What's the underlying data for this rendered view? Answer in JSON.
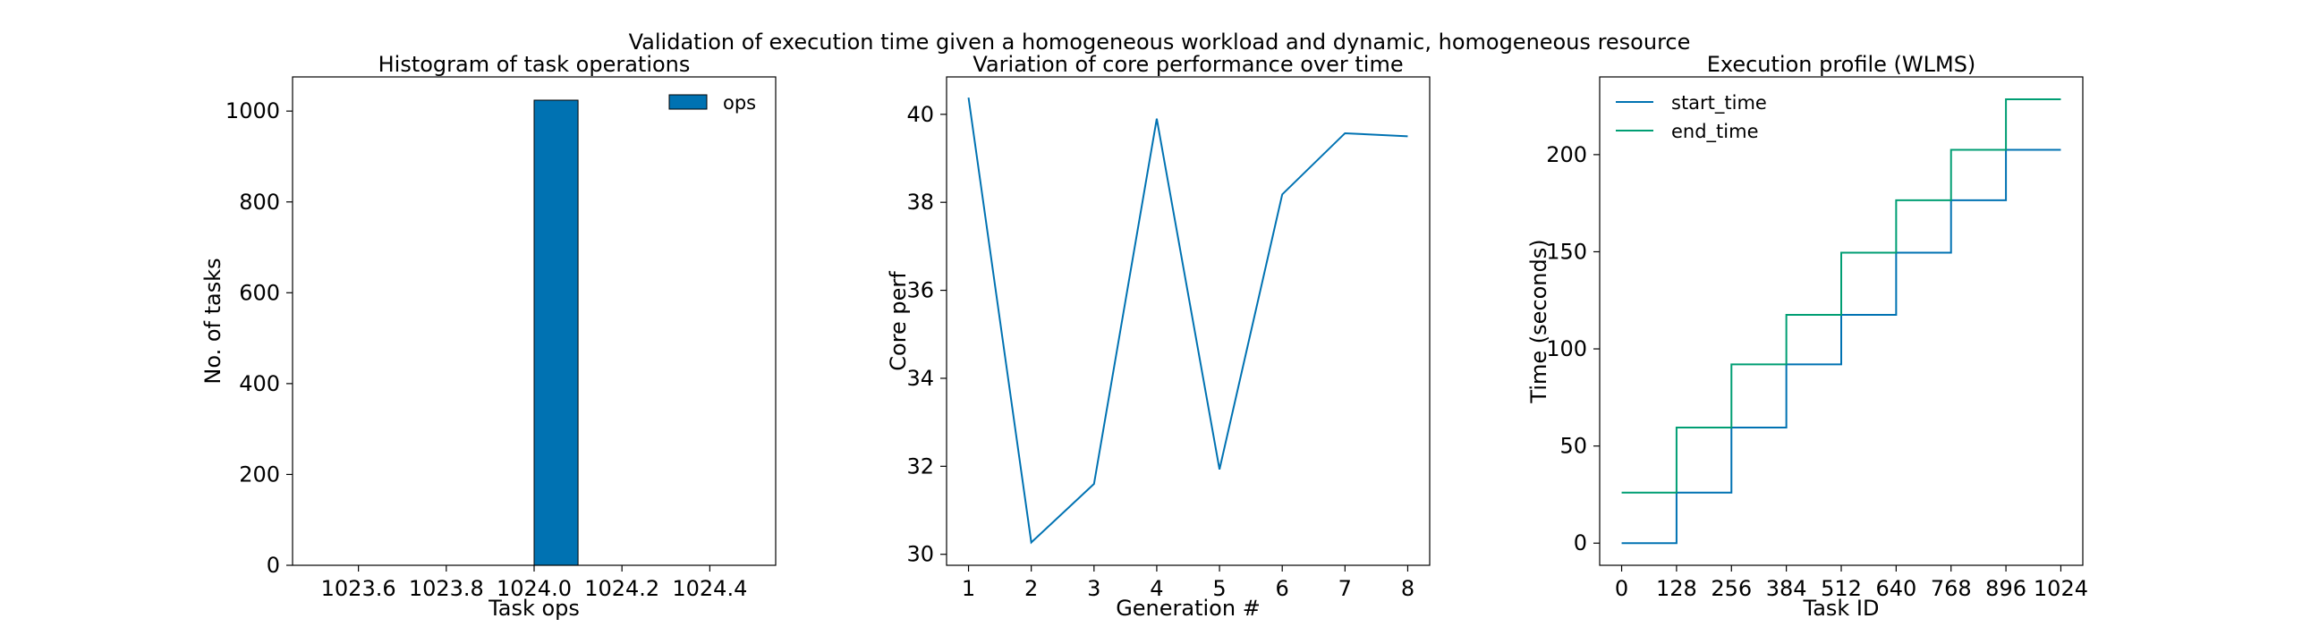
{
  "figure": {
    "suptitle": "Validation of execution time given a homogeneous workload and dynamic, homogeneous resource"
  },
  "chart_data": [
    {
      "type": "bar",
      "title": "Histogram of task operations",
      "xlabel": "Task ops",
      "ylabel": "No. of tasks",
      "xlim": [
        1023.45,
        1024.55
      ],
      "ylim": [
        0,
        1075.2
      ],
      "xticks": [
        "1023.6",
        "1023.8",
        "1024.0",
        "1024.2",
        "1024.4"
      ],
      "yticks": [
        "0",
        "200",
        "400",
        "600",
        "800",
        "1000"
      ],
      "bins": [
        {
          "x0": 1024.0,
          "x1": 1024.1,
          "count": 1024
        }
      ],
      "series": [
        {
          "name": "ops",
          "color": "#0072b2"
        }
      ],
      "legend": "upper right",
      "grid": false
    },
    {
      "type": "line",
      "title": "Variation of core performance over time",
      "xlabel": "Generation #",
      "ylabel": "Core perf",
      "xlim": [
        0.65,
        8.35
      ],
      "ylim": [
        29.75,
        40.85
      ],
      "xticks": [
        "1",
        "2",
        "3",
        "4",
        "5",
        "6",
        "7",
        "8"
      ],
      "yticks": [
        "30",
        "32",
        "34",
        "36",
        "38",
        "40"
      ],
      "x": [
        1,
        2,
        3,
        4,
        5,
        6,
        7,
        8
      ],
      "series": [
        {
          "values": [
            40.38,
            30.27,
            31.6,
            39.9,
            31.93,
            38.18,
            39.57,
            39.5
          ],
          "color": "#0072b2"
        }
      ],
      "grid": false
    },
    {
      "type": "line",
      "title": "Execution profile (WLMS)",
      "xlabel": "Task ID",
      "ylabel": "Time (seconds)",
      "xlim": [
        -51.2,
        1075.2
      ],
      "ylim": [
        -11.4,
        240
      ],
      "xticks": [
        "0",
        "128",
        "256",
        "384",
        "512",
        "640",
        "768",
        "896",
        "1024"
      ],
      "yticks": [
        "0",
        "50",
        "100",
        "150",
        "200"
      ],
      "steps": [
        0,
        128,
        256,
        384,
        512,
        640,
        768,
        896,
        1024
      ],
      "series": [
        {
          "name": "start_time",
          "color": "#0072b2",
          "values": [
            0,
            26,
            59.5,
            92,
            117.5,
            149.5,
            176.5,
            202.5,
            202.5
          ]
        },
        {
          "name": "end_time",
          "color": "#009e73",
          "values": [
            26,
            59.5,
            92,
            117.5,
            149.5,
            176.5,
            202.5,
            228.5,
            228.5
          ]
        }
      ],
      "legend": "upper left",
      "grid": false
    }
  ]
}
